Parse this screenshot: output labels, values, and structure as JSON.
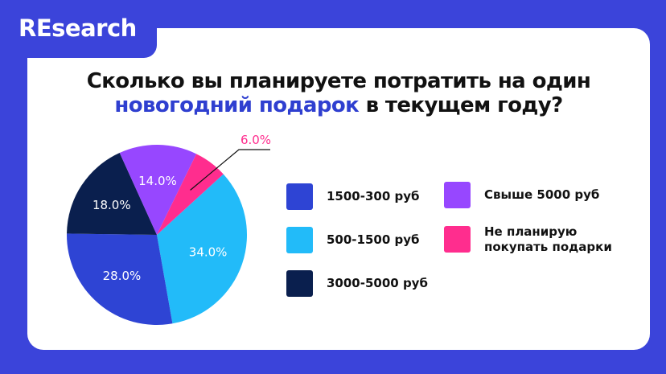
{
  "brand": "REsearch",
  "title": {
    "line1": "Сколько вы планируете потратить на один",
    "line2_highlight": "новогодний подарок",
    "line2_rest": " в текущем году?"
  },
  "colors": {
    "background": "#3B44DA",
    "highlight": "#2F3FD0"
  },
  "chart_data": {
    "type": "pie",
    "slices": [
      {
        "label": "500-1500 руб",
        "value": 34.0,
        "data_label": "34.0%",
        "color": "#22BBF9"
      },
      {
        "label": "1500-300 руб",
        "value": 28.0,
        "data_label": "28.0%",
        "color": "#2E44D4"
      },
      {
        "label": "3000-5000 руб",
        "value": 18.0,
        "data_label": "18.0%",
        "color": "#0A1F4E"
      },
      {
        "label": "Свыше 5000 руб",
        "value": 14.0,
        "data_label": "14.0%",
        "color": "#9747FF"
      },
      {
        "label": "Не планирую покупать подарки",
        "value": 6.0,
        "data_label": "6.0%",
        "color": "#FF2D8E"
      }
    ],
    "legend": [
      {
        "label": "1500-300 руб",
        "color": "#2E44D4"
      },
      {
        "label": "500-1500 руб",
        "color": "#22BBF9"
      },
      {
        "label": "3000-5000 руб",
        "color": "#0A1F4E"
      },
      {
        "label": "Свыше 5000 руб",
        "color": "#9747FF"
      },
      {
        "label_line1": "Не планирую",
        "label_line2": "покупать подарки",
        "color": "#FF2D8E"
      }
    ],
    "legend_placement": "right"
  }
}
